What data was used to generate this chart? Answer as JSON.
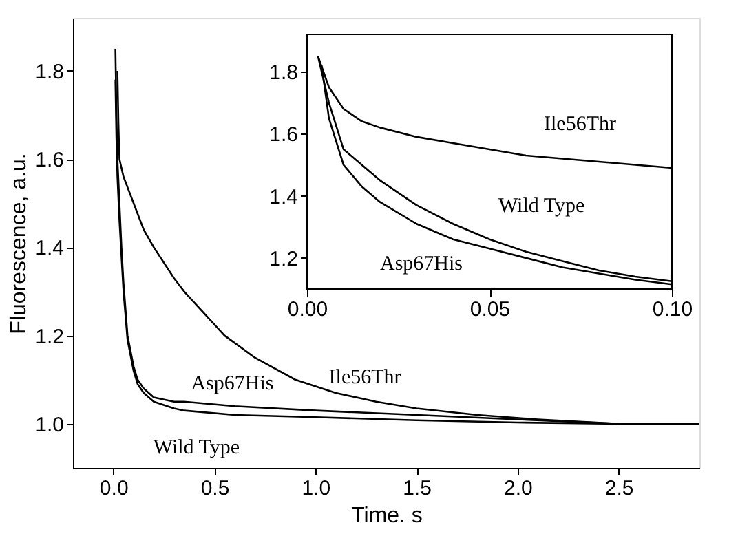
{
  "chart_data": [
    {
      "type": "line",
      "xlabel": "Time. s",
      "ylabel": "Fluorescence, a.u.",
      "xlim": [
        -0.2,
        2.9
      ],
      "ylim": [
        0.9,
        1.92
      ],
      "xticks": [
        {
          "value": 0,
          "label": "0.0"
        },
        0.5,
        {
          "value": 1,
          "label": "1.0"
        },
        1.5,
        {
          "value": 2,
          "label": "2.0"
        },
        2.5
      ],
      "yticks": [
        {
          "value": 1,
          "label": "1.0"
        },
        1.2,
        1.4,
        1.6,
        1.8
      ],
      "grid": false,
      "legend": false,
      "marker": "none",
      "line_style": "solid",
      "series": [
        {
          "name": "Ile56Thr",
          "color": "#000000",
          "x": [
            0.02,
            0.025,
            0.03,
            0.05,
            0.1,
            0.15,
            0.2,
            0.3,
            0.35,
            0.45,
            0.55,
            0.7,
            0.9,
            1.1,
            1.3,
            1.5,
            1.8,
            2.1,
            2.5,
            2.9
          ],
          "values": [
            1.8,
            1.68,
            1.6,
            1.56,
            1.5,
            1.44,
            1.4,
            1.33,
            1.3,
            1.25,
            1.2,
            1.15,
            1.1,
            1.07,
            1.05,
            1.035,
            1.02,
            1.01,
            1.0,
            1.0
          ]
        },
        {
          "name": "Asp67His",
          "color": "#000000",
          "x": [
            0.01,
            0.015,
            0.02,
            0.03,
            0.04,
            0.05,
            0.07,
            0.1,
            0.12,
            0.15,
            0.2,
            0.3,
            0.35,
            0.6,
            1.0,
            1.5,
            2.0,
            2.5,
            2.9
          ],
          "values": [
            1.85,
            1.7,
            1.6,
            1.5,
            1.4,
            1.32,
            1.2,
            1.13,
            1.1,
            1.08,
            1.06,
            1.05,
            1.05,
            1.04,
            1.03,
            1.02,
            1.01,
            1.0,
            1.0
          ]
        },
        {
          "name": "Wild Type",
          "color": "#000000",
          "x": [
            0.01,
            0.015,
            0.02,
            0.03,
            0.04,
            0.05,
            0.07,
            0.1,
            0.12,
            0.15,
            0.2,
            0.3,
            0.35,
            0.6,
            1.0,
            1.5,
            2.0,
            2.5,
            2.9
          ],
          "values": [
            1.78,
            1.65,
            1.56,
            1.46,
            1.38,
            1.3,
            1.19,
            1.12,
            1.09,
            1.07,
            1.05,
            1.035,
            1.03,
            1.02,
            1.015,
            1.008,
            1.003,
            1.0,
            1.0
          ]
        }
      ]
    },
    {
      "type": "line",
      "xlim": [
        0.0,
        0.1
      ],
      "ylim": [
        1.1,
        1.92
      ],
      "xticks": [
        {
          "value": 0,
          "label": "0.00"
        },
        0.05,
        {
          "value": 0.1,
          "label": "0.10"
        }
      ],
      "yticks": [
        1.2,
        1.4,
        1.6,
        1.8
      ],
      "grid": false,
      "legend": false,
      "marker": "none",
      "line_style": "solid",
      "series": [
        {
          "name": "Ile56Thr",
          "color": "#000000",
          "x": [
            0.003,
            0.006,
            0.01,
            0.015,
            0.02,
            0.03,
            0.04,
            0.05,
            0.06,
            0.07,
            0.08,
            0.09,
            0.1
          ],
          "values": [
            1.85,
            1.75,
            1.68,
            1.64,
            1.62,
            1.59,
            1.57,
            1.55,
            1.53,
            1.52,
            1.51,
            1.5,
            1.49
          ]
        },
        {
          "name": "Wild Type",
          "color": "#000000",
          "x": [
            0.003,
            0.006,
            0.01,
            0.015,
            0.02,
            0.03,
            0.04,
            0.05,
            0.06,
            0.07,
            0.08,
            0.09,
            0.1
          ],
          "values": [
            1.85,
            1.7,
            1.55,
            1.5,
            1.45,
            1.37,
            1.31,
            1.26,
            1.22,
            1.19,
            1.16,
            1.14,
            1.125
          ]
        },
        {
          "name": "Asp67His",
          "color": "#000000",
          "x": [
            0.004,
            0.006,
            0.01,
            0.015,
            0.02,
            0.03,
            0.04,
            0.05,
            0.06,
            0.07,
            0.08,
            0.09,
            0.1
          ],
          "values": [
            1.82,
            1.65,
            1.5,
            1.43,
            1.38,
            1.31,
            1.26,
            1.23,
            1.2,
            1.17,
            1.15,
            1.13,
            1.115
          ]
        }
      ]
    }
  ]
}
